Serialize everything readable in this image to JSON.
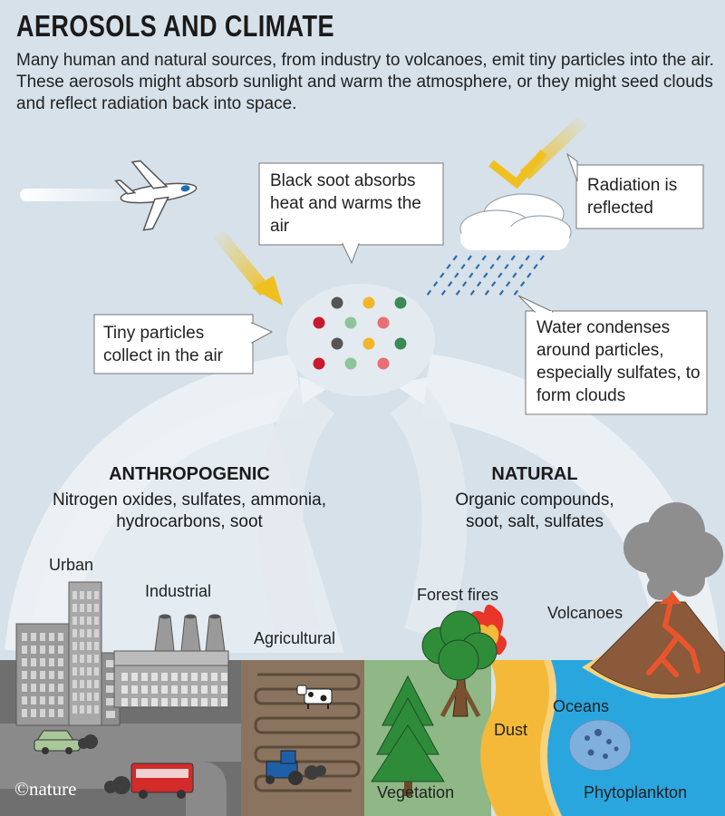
{
  "title": "AEROSOLS AND CLIMATE",
  "intro": "Many human and natural sources, from industry to volcanoes, emit tiny particles into the air. These aerosols might absorb sunlight and warm the atmosphere, or they might seed clouds and reflect radiation back into space.",
  "callouts": {
    "soot": "Black soot absorbs heat and warms the air",
    "reflected": "Radiation is reflected",
    "particles": "Tiny particles collect in the air",
    "water": "Water condenses around particles, especially sulfates, to form clouds"
  },
  "anthropogenic": {
    "heading": "ANTHROPOGENIC",
    "list": "Nitrogen oxides, sulfates, ammonia, hydrocarbons, soot"
  },
  "natural": {
    "heading": "NATURAL",
    "list": "Organic compounds, soot, salt, sulfates"
  },
  "sources": {
    "urban": "Urban",
    "industrial": "Industrial",
    "agricultural": "Agricultural",
    "forest_fires": "Forest fires",
    "volcanoes": "Volcanoes",
    "dust": "Dust",
    "oceans": "Oceans",
    "vegetation": "Vegetation",
    "phytoplankton": "Phytoplankton"
  },
  "credit": "©nature",
  "particle_colors": [
    "#555555",
    "#f2b52c",
    "#3a8a57",
    "#c8192e",
    "#8fc49a",
    "#ea6f72"
  ],
  "colors": {
    "sky": "#d6e1ea",
    "urban_ground": "#6f6f6f",
    "farmland": "#8a7460",
    "vegetation": "#8fb886",
    "dust": "#f5b93a",
    "ocean": "#2aa6df",
    "lava": "#e8552c",
    "arrow_yellow": "#f0c020",
    "rain": "#2b6cb0"
  }
}
